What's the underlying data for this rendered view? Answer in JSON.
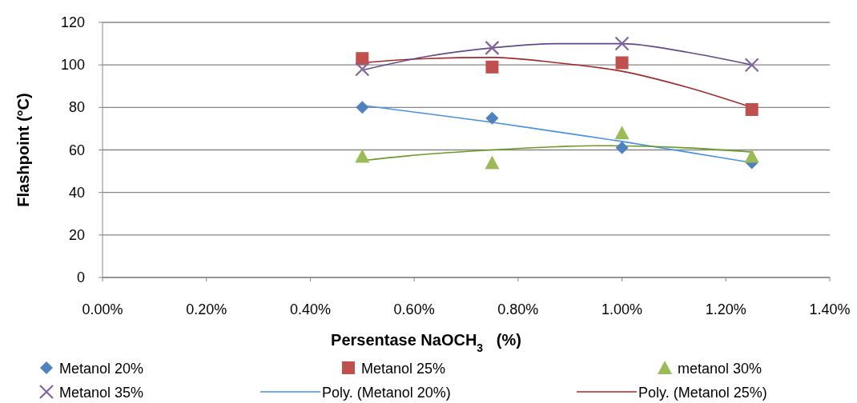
{
  "chart_data": {
    "type": "scatter",
    "xlabel": "Persentase NaOCH$_{3}$   (%)",
    "ylabel": "Flashpoint (°C)",
    "xlim": [
      0,
      1.4
    ],
    "xticks": [
      {
        "value": 0,
        "label": "0.00%"
      },
      {
        "value": 0.2,
        "label": "0.20%"
      },
      {
        "value": 0.4,
        "label": "0.40%"
      },
      {
        "value": 0.6,
        "label": "0.60%"
      },
      {
        "value": 0.8,
        "label": "0.80%"
      },
      {
        "value": 1.0,
        "label": "1.00%"
      },
      {
        "value": 1.2,
        "label": "1.20%"
      },
      {
        "value": 1.4,
        "label": "1.40%"
      }
    ],
    "ylim": [
      0,
      120
    ],
    "yticks": [
      0,
      20,
      40,
      60,
      80,
      100,
      120
    ],
    "grid": "y",
    "legend": "bottom",
    "series": [
      {
        "name": "Metanol 20%",
        "color": "#4f81bd",
        "marker": "diamond",
        "x": [
          0.5,
          0.75,
          1.0,
          1.25
        ],
        "values": [
          80,
          75,
          61,
          54
        ]
      },
      {
        "name": "Metanol 25%",
        "color": "#c0504d",
        "marker": "square",
        "x": [
          0.5,
          0.75,
          1.0,
          1.25
        ],
        "values": [
          103,
          99,
          101,
          79
        ]
      },
      {
        "name": "metanol 30%",
        "color": "#9bbb59",
        "marker": "triangle",
        "x": [
          0.5,
          0.75,
          1.0,
          1.25
        ],
        "values": [
          57,
          54,
          68,
          57
        ]
      },
      {
        "name": "Metanol 35%",
        "color": "#8064a2",
        "marker": "cross",
        "x": [
          0.5,
          0.75,
          1.0,
          1.25
        ],
        "values": [
          98,
          108,
          110,
          100
        ]
      },
      {
        "name": "Poly. (Metanol 20%)",
        "type": "line",
        "color": "#4a90e2",
        "marker": "none",
        "x": [
          0.5,
          0.625,
          0.75,
          0.875,
          1.0,
          1.125,
          1.25
        ],
        "values": [
          81,
          77,
          73,
          68.5,
          64,
          59,
          54
        ]
      },
      {
        "name": "Poly. (Metanol 25%)",
        "type": "line",
        "color": "#a5282a",
        "marker": "none",
        "x": [
          0.5,
          0.625,
          0.75,
          0.875,
          1.0,
          1.125,
          1.25
        ],
        "values": [
          101,
          103,
          103.5,
          101,
          97,
          89.5,
          80
        ]
      },
      {
        "type": "line",
        "color": "#6a9a2a",
        "marker": "none",
        "x": [
          0.5,
          0.625,
          0.75,
          0.875,
          0.95,
          1.125,
          1.25
        ],
        "values": [
          55,
          58,
          60,
          61.5,
          62,
          61,
          59
        ]
      },
      {
        "type": "line",
        "color": "#604a8a",
        "marker": "none",
        "x": [
          0.5,
          0.625,
          0.75,
          0.875,
          1.0,
          1.125,
          1.25
        ],
        "values": [
          97.5,
          104,
          108,
          110,
          110,
          106,
          100
        ]
      }
    ]
  }
}
